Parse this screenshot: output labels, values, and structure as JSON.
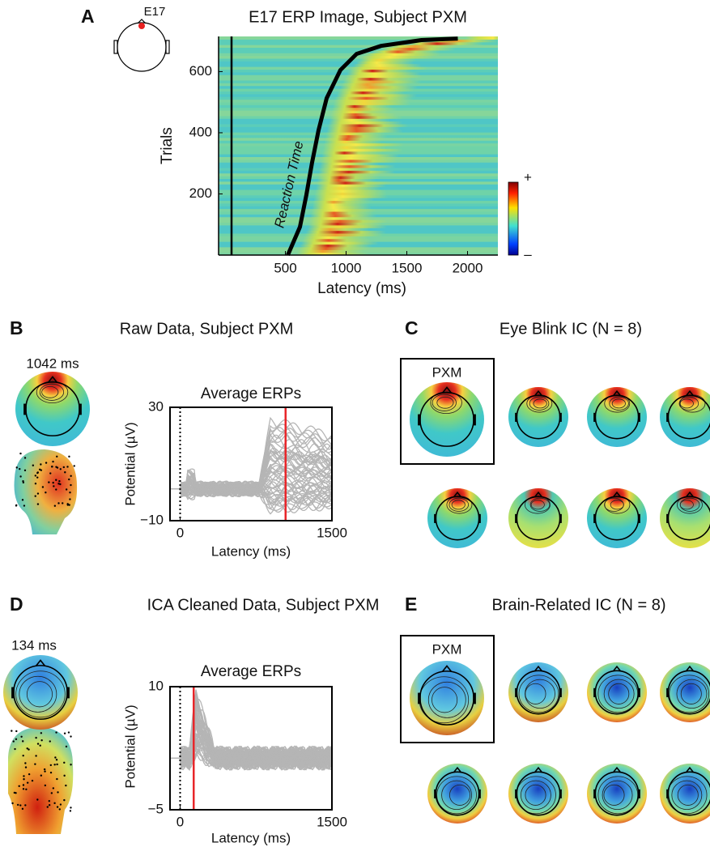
{
  "chart_data": [
    {
      "type": "erp-image",
      "label": "A",
      "title": "E17 ERP Image, Subject PXM",
      "electrode": "E17",
      "x_label": "Latency (ms)",
      "y_label": "Trials",
      "xlim": [
        -50,
        2250
      ],
      "xticks": [
        500,
        1000,
        1500,
        2000
      ],
      "ylim": [
        0,
        715
      ],
      "yticks": [
        200,
        400,
        600
      ],
      "colorbar_labels": [
        "+",
        "–"
      ],
      "series": [
        {
          "name": "Reaction Time",
          "color": "#000000",
          "x": [
            520,
            620,
            673,
            720,
            773,
            840,
            953,
            1087,
            1287,
            1620,
            1920
          ],
          "values": [
            0,
            92,
            197,
            303,
            408,
            513,
            605,
            658,
            684,
            703,
            708
          ]
        }
      ]
    },
    {
      "type": "line",
      "title": "Average ERPs",
      "x_label": "Latency (ms)",
      "y_label": "Potential (µV)",
      "xlim": [
        -100,
        1500
      ],
      "xticks": [
        0,
        1500
      ],
      "ylim": [
        -10,
        30
      ],
      "yticks": [
        {
          "value": -10,
          "label": "−10"
        },
        30
      ],
      "marker": {
        "value": 1042,
        "label": "1042 ms"
      },
      "color": "#b5b5b5",
      "marker_color": "#e8262a"
    },
    {
      "type": "line",
      "title": "Average ERPs",
      "x_label": "Latency (ms)",
      "y_label": "Potential (µV)",
      "xlim": [
        -100,
        1500
      ],
      "xticks": [
        0,
        1500
      ],
      "ylim": [
        -5,
        10
      ],
      "yticks": [
        {
          "value": -5,
          "label": "−5"
        },
        10
      ],
      "marker": {
        "value": 134,
        "label": "134 ms"
      },
      "color": "#b5b5b5",
      "marker_color": "#e8262a"
    }
  ],
  "panels": {
    "b": {
      "label": "B",
      "title": "Raw Data, Subject PXM"
    },
    "c": {
      "label": "C",
      "title": "Eye Blink IC (N = 8)",
      "subject": "PXM"
    },
    "d": {
      "label": "D",
      "title": "ICA Cleaned Data, Subject PXM"
    },
    "e": {
      "label": "E",
      "title": "Brain-Related IC (N = 8)",
      "subject": "PXM"
    }
  }
}
